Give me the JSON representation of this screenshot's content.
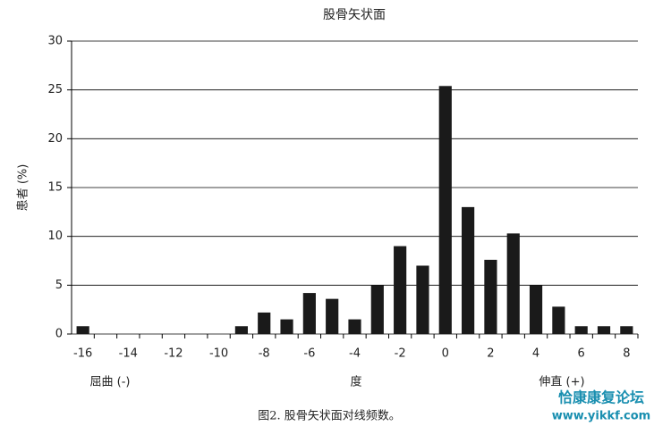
{
  "chart_data": {
    "type": "bar",
    "title": "股骨矢状面",
    "ylabel": "患者 (%)",
    "xlabel": "度",
    "annotations": [
      "屈曲 (-)",
      "伸直 (+)"
    ],
    "categories": [
      -16,
      null,
      -14,
      null,
      -12,
      null,
      -10,
      null,
      -8,
      null,
      -6,
      null,
      -4,
      null,
      -2,
      null,
      0,
      null,
      2,
      null,
      4,
      null,
      6,
      null,
      8
    ],
    "values": [
      0.8,
      0,
      0,
      0,
      0,
      0,
      0,
      0.8,
      2.2,
      1.5,
      4.2,
      3.6,
      1.5,
      5.0,
      9.0,
      7.0,
      25.4,
      13.0,
      7.6,
      10.3,
      5.0,
      2.8,
      0.8,
      0.8,
      0.8
    ],
    "color": "#1a1a1a",
    "ylim": [
      0,
      30
    ],
    "yticks": [
      0,
      5,
      10,
      15,
      20,
      25,
      30
    ],
    "grid": true
  },
  "caption": "图2. 股骨矢状面对线频数。",
  "watermark": [
    "恰康康复论坛",
    "www.yikkf.com"
  ]
}
